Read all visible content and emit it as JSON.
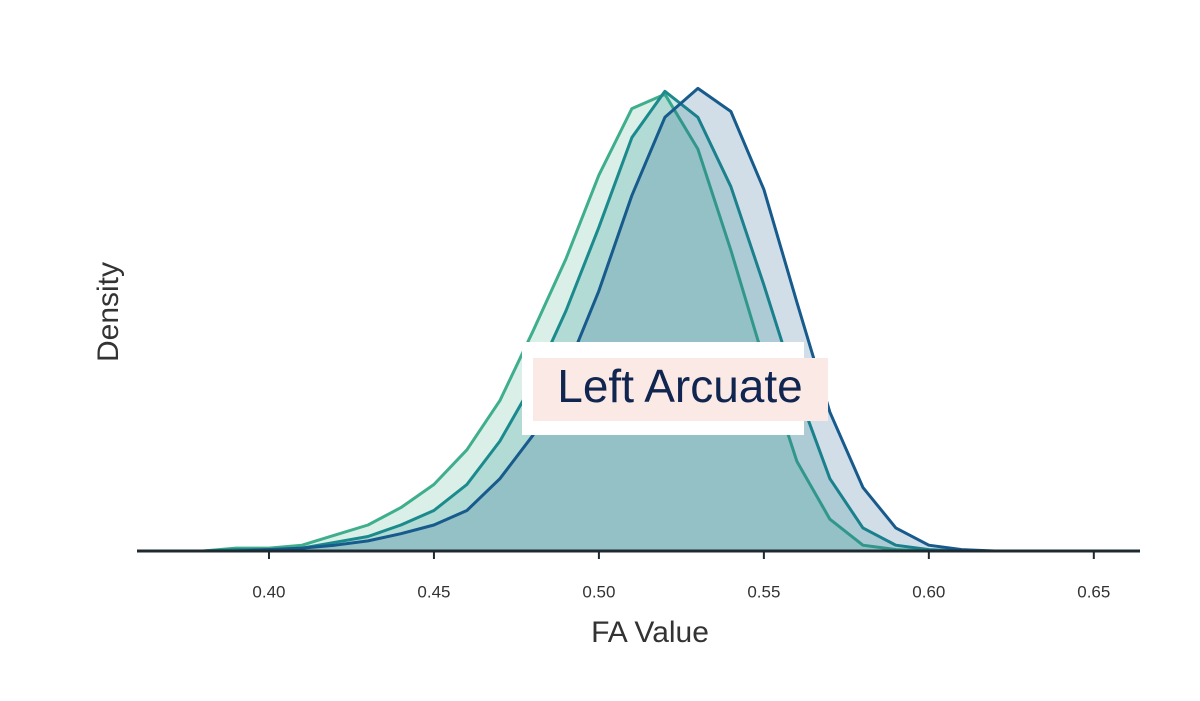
{
  "chart_data": {
    "type": "area",
    "annotation": "Left Arcuate",
    "xlabel": "FA Value",
    "ylabel": "Density",
    "x": [
      0.36,
      0.37,
      0.38,
      0.39,
      0.4,
      0.41,
      0.42,
      0.43,
      0.44,
      0.45,
      0.46,
      0.47,
      0.48,
      0.49,
      0.5,
      0.51,
      0.52,
      0.53,
      0.54,
      0.55,
      0.56,
      0.57,
      0.58,
      0.59,
      0.6,
      0.61,
      0.62,
      0.63,
      0.64,
      0.65,
      0.66
    ],
    "series": [
      {
        "color": "#3fae8c",
        "values": [
          0,
          0,
          0,
          0.1,
          0.1,
          0.2,
          0.55,
          0.9,
          1.5,
          2.3,
          3.5,
          5.2,
          7.6,
          10.1,
          13.0,
          15.3,
          15.8,
          13.9,
          10.4,
          6.6,
          3.1,
          1.1,
          0.2,
          0.05,
          0,
          0,
          0,
          0,
          0,
          0,
          0
        ]
      },
      {
        "color": "#1b8a8c",
        "values": [
          0,
          0,
          0,
          0.05,
          0.05,
          0.1,
          0.3,
          0.5,
          0.9,
          1.4,
          2.3,
          3.8,
          5.8,
          8.3,
          11.2,
          14.3,
          15.9,
          15.0,
          12.6,
          9.2,
          5.6,
          2.5,
          0.8,
          0.2,
          0.05,
          0,
          0,
          0,
          0,
          0,
          0
        ]
      },
      {
        "color": "#175a8c",
        "values": [
          0,
          0,
          0,
          0,
          0.05,
          0.1,
          0.2,
          0.35,
          0.6,
          0.9,
          1.4,
          2.5,
          4.0,
          6.2,
          9.0,
          12.3,
          15.0,
          16.0,
          15.2,
          12.5,
          8.6,
          4.8,
          2.2,
          0.8,
          0.2,
          0.05,
          0,
          0,
          0,
          0,
          0
        ]
      }
    ],
    "xlim": [
      0.36,
      0.664
    ],
    "ylim": [
      0,
      17.5
    ],
    "xticks": [
      {
        "value": 0.4,
        "label": "0.40"
      },
      {
        "value": 0.45,
        "label": "0.45"
      },
      {
        "value": 0.5,
        "label": "0.50"
      },
      {
        "value": 0.55,
        "label": "0.55"
      },
      {
        "value": 0.6,
        "label": "0.60"
      },
      {
        "value": 0.65,
        "label": "0.65"
      }
    ],
    "fill_opacity": 0.2
  }
}
